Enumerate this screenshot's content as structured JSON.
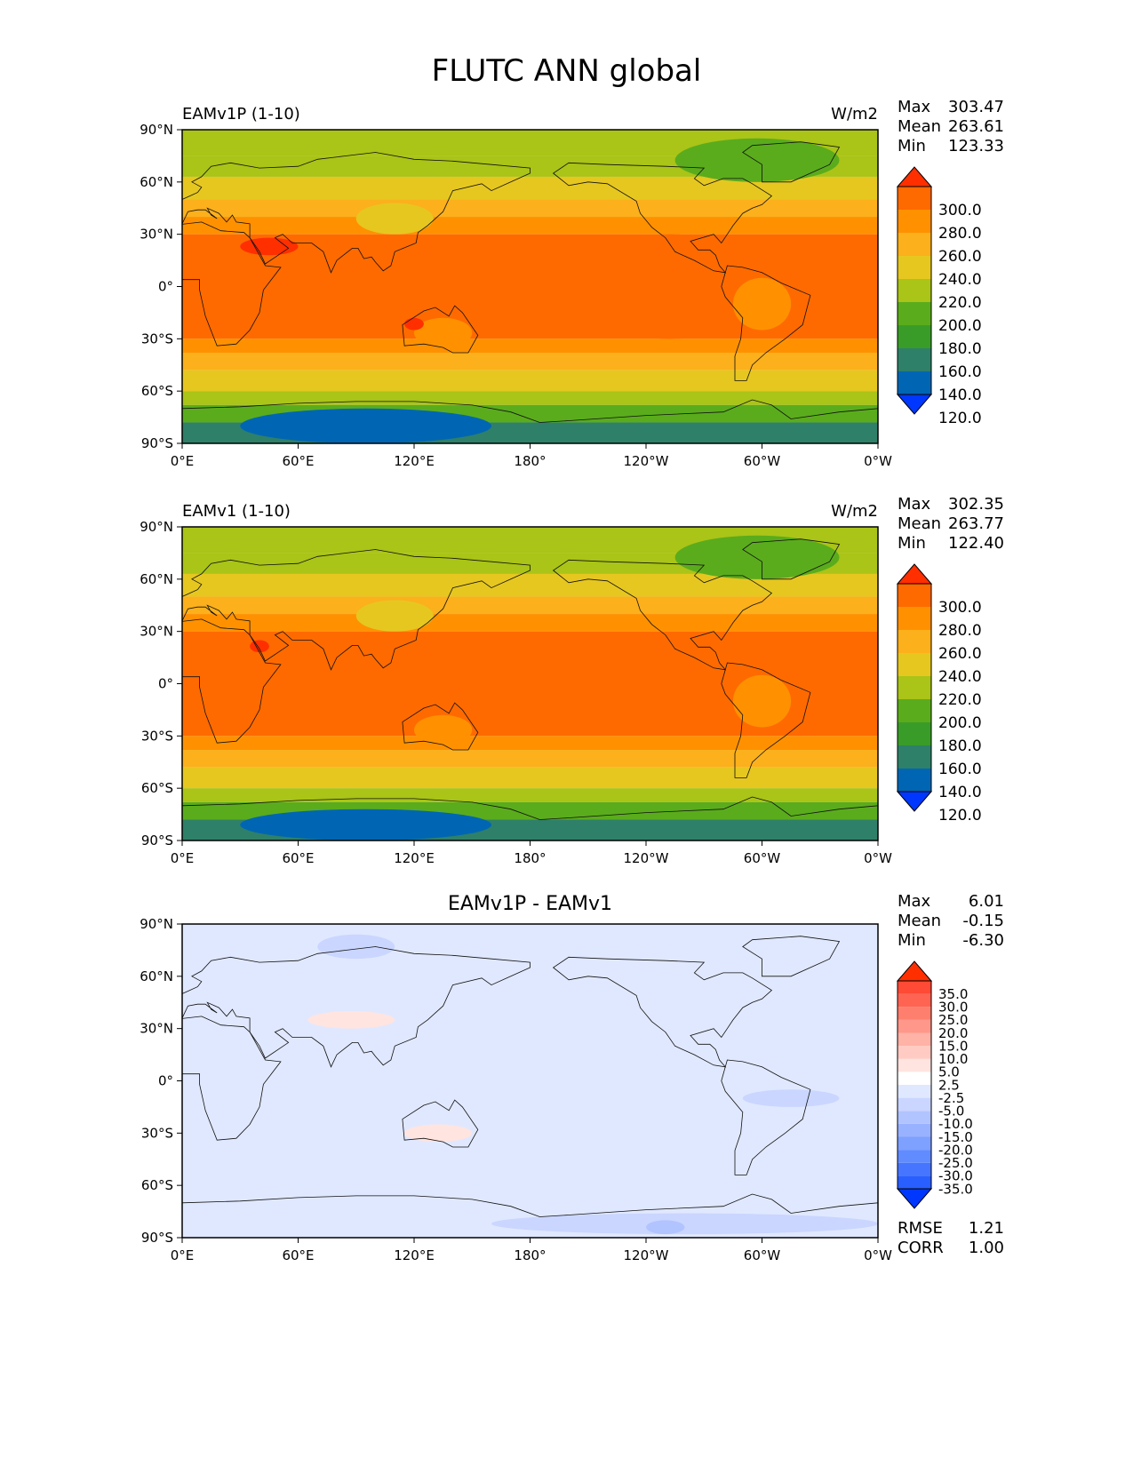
{
  "suptitle": "FLUTC ANN global",
  "palettes": {
    "main": [
      "#0037ff",
      "#0066b3",
      "#2e8069",
      "#3a9c28",
      "#5aac1c",
      "#aac417",
      "#e6c720",
      "#fbb01c",
      "#ff9100",
      "#ff6a00",
      "#ff2f00"
    ],
    "diff": [
      "#0037ff",
      "#295eff",
      "#4676ff",
      "#608cff",
      "#7ea0ff",
      "#98b2ff",
      "#b1c4ff",
      "#cad6ff",
      "#e0e8ff",
      "#ffffff",
      "#ffe4e0",
      "#ffcbc2",
      "#ffb2a6",
      "#ff988a",
      "#ff7f6e",
      "#ff6452",
      "#ff4a36",
      "#ff2f00"
    ]
  },
  "chart_data": [
    {
      "type": "heatmap",
      "panel": "test",
      "title_left": "EAMv1P (1-10)",
      "title_right": "W/m2",
      "stats": [
        {
          "label": "Max",
          "value": "303.47"
        },
        {
          "label": "Mean",
          "value": "263.61"
        },
        {
          "label": "Min",
          "value": "123.33"
        }
      ],
      "xticks": [
        "0°E",
        "60°E",
        "120°E",
        "180°",
        "120°W",
        "60°W",
        "0°W"
      ],
      "yticks": [
        "90°N",
        "60°N",
        "30°N",
        "0°",
        "30°S",
        "60°S",
        "90°S"
      ],
      "colorbar_levels": [
        "300.0",
        "280.0",
        "260.0",
        "240.0",
        "220.0",
        "200.0",
        "180.0",
        "160.0",
        "140.0",
        "120.0"
      ],
      "zonal_bands": [
        {
          "lat_top": 90,
          "lat_bottom": 75,
          "value": 205
        },
        {
          "lat_top": 75,
          "lat_bottom": 63,
          "value": 215
        },
        {
          "lat_top": 63,
          "lat_bottom": 50,
          "value": 235
        },
        {
          "lat_top": 50,
          "lat_bottom": 40,
          "value": 255
        },
        {
          "lat_top": 40,
          "lat_bottom": 30,
          "value": 268
        },
        {
          "lat_top": 30,
          "lat_bottom": -30,
          "value": 285
        },
        {
          "lat_top": -30,
          "lat_bottom": -38,
          "value": 268
        },
        {
          "lat_top": -38,
          "lat_bottom": -48,
          "value": 255
        },
        {
          "lat_top": -48,
          "lat_bottom": -60,
          "value": 235
        },
        {
          "lat_top": -60,
          "lat_bottom": -68,
          "value": 215
        },
        {
          "lat_top": -68,
          "lat_bottom": -78,
          "value": 180
        },
        {
          "lat_top": -78,
          "lat_bottom": -90,
          "value": 150
        }
      ],
      "anomalies": [
        {
          "lon_min": 200,
          "lon_max": 305,
          "lat_min": -30,
          "lat_max": 30,
          "value": 285
        },
        {
          "lon_min": 120,
          "lon_max": 150,
          "lat_min": -35,
          "lat_max": -18,
          "value": 265
        },
        {
          "lon_min": 285,
          "lon_max": 315,
          "lat_min": -25,
          "lat_max": 5,
          "value": 265
        },
        {
          "lon_min": 90,
          "lon_max": 130,
          "lat_min": 30,
          "lat_max": 48,
          "value": 235
        },
        {
          "lon_min": 30,
          "lon_max": 60,
          "lat_min": 18,
          "lat_max": 28,
          "value": 305
        },
        {
          "lon_min": 115,
          "lon_max": 125,
          "lat_min": -25,
          "lat_max": -18,
          "value": 305
        },
        {
          "lon_min": 30,
          "lon_max": 160,
          "lat_min": -90,
          "lat_max": -70,
          "value": 135
        },
        {
          "lon_min": 255,
          "lon_max": 340,
          "lat_min": 60,
          "lat_max": 85,
          "value": 185
        }
      ]
    },
    {
      "type": "heatmap",
      "panel": "reference",
      "title_left": "EAMv1 (1-10)",
      "title_right": "W/m2",
      "stats": [
        {
          "label": "Max",
          "value": "302.35"
        },
        {
          "label": "Mean",
          "value": "263.77"
        },
        {
          "label": "Min",
          "value": "122.40"
        }
      ],
      "xticks": [
        "0°E",
        "60°E",
        "120°E",
        "180°",
        "120°W",
        "60°W",
        "0°W"
      ],
      "yticks": [
        "90°N",
        "60°N",
        "30°N",
        "0°",
        "30°S",
        "60°S",
        "90°S"
      ],
      "colorbar_levels": [
        "300.0",
        "280.0",
        "260.0",
        "240.0",
        "220.0",
        "200.0",
        "180.0",
        "160.0",
        "140.0",
        "120.0"
      ],
      "zonal_bands": [
        {
          "lat_top": 90,
          "lat_bottom": 75,
          "value": 205
        },
        {
          "lat_top": 75,
          "lat_bottom": 63,
          "value": 215
        },
        {
          "lat_top": 63,
          "lat_bottom": 50,
          "value": 235
        },
        {
          "lat_top": 50,
          "lat_bottom": 40,
          "value": 255
        },
        {
          "lat_top": 40,
          "lat_bottom": 30,
          "value": 268
        },
        {
          "lat_top": 30,
          "lat_bottom": -30,
          "value": 285
        },
        {
          "lat_top": -30,
          "lat_bottom": -38,
          "value": 268
        },
        {
          "lat_top": -38,
          "lat_bottom": -48,
          "value": 255
        },
        {
          "lat_top": -48,
          "lat_bottom": -60,
          "value": 235
        },
        {
          "lat_top": -60,
          "lat_bottom": -68,
          "value": 215
        },
        {
          "lat_top": -68,
          "lat_bottom": -78,
          "value": 180
        },
        {
          "lat_top": -78,
          "lat_bottom": -90,
          "value": 150
        }
      ],
      "anomalies": [
        {
          "lon_min": 120,
          "lon_max": 150,
          "lat_min": -35,
          "lat_max": -18,
          "value": 265
        },
        {
          "lon_min": 285,
          "lon_max": 315,
          "lat_min": -25,
          "lat_max": 5,
          "value": 265
        },
        {
          "lon_min": 90,
          "lon_max": 130,
          "lat_min": 30,
          "lat_max": 48,
          "value": 235
        },
        {
          "lon_min": 35,
          "lon_max": 45,
          "lat_min": 18,
          "lat_max": 25,
          "value": 305
        },
        {
          "lon_min": 30,
          "lon_max": 160,
          "lat_min": -90,
          "lat_max": -72,
          "value": 135
        },
        {
          "lon_min": 255,
          "lon_max": 340,
          "lat_min": 60,
          "lat_max": 85,
          "value": 185
        }
      ]
    },
    {
      "type": "heatmap",
      "panel": "difference",
      "title_center": "EAMv1P - EAMv1",
      "stats": [
        {
          "label": "Max",
          "value": "6.01"
        },
        {
          "label": "Mean",
          "value": "-0.15"
        },
        {
          "label": "Min",
          "value": "-6.30"
        }
      ],
      "extra_stats": [
        {
          "label": "RMSE",
          "value": "1.21"
        },
        {
          "label": "CORR",
          "value": "1.00"
        }
      ],
      "xticks": [
        "0°E",
        "60°E",
        "120°E",
        "180°",
        "120°W",
        "60°W",
        "0°W"
      ],
      "yticks": [
        "90°N",
        "60°N",
        "30°N",
        "0°",
        "30°S",
        "60°S",
        "90°S"
      ],
      "colorbar_levels": [
        "35.0",
        "30.0",
        "25.0",
        "20.0",
        "15.0",
        "10.0",
        "5.0",
        "2.5",
        "-2.5",
        "-5.0",
        "-10.0",
        "-15.0",
        "-20.0",
        "-25.0",
        "-30.0",
        "-35.0"
      ],
      "zonal_bands": [
        {
          "lat_top": 90,
          "lat_bottom": -90,
          "value": 0
        }
      ],
      "anomalies": [
        {
          "lon_min": 70,
          "lon_max": 110,
          "lat_min": 70,
          "lat_max": 84,
          "value": -3
        },
        {
          "lon_min": 65,
          "lon_max": 110,
          "lat_min": 30,
          "lat_max": 40,
          "value": 3
        },
        {
          "lon_min": 115,
          "lon_max": 150,
          "lat_min": -35,
          "lat_max": -25,
          "value": 3
        },
        {
          "lon_min": 290,
          "lon_max": 340,
          "lat_min": -15,
          "lat_max": -5,
          "value": -3
        },
        {
          "lon_min": 160,
          "lon_max": 360,
          "lat_min": -88,
          "lat_max": -76,
          "value": -3
        },
        {
          "lon_min": 240,
          "lon_max": 260,
          "lat_min": -88,
          "lat_max": -80,
          "value": -6
        }
      ]
    }
  ]
}
